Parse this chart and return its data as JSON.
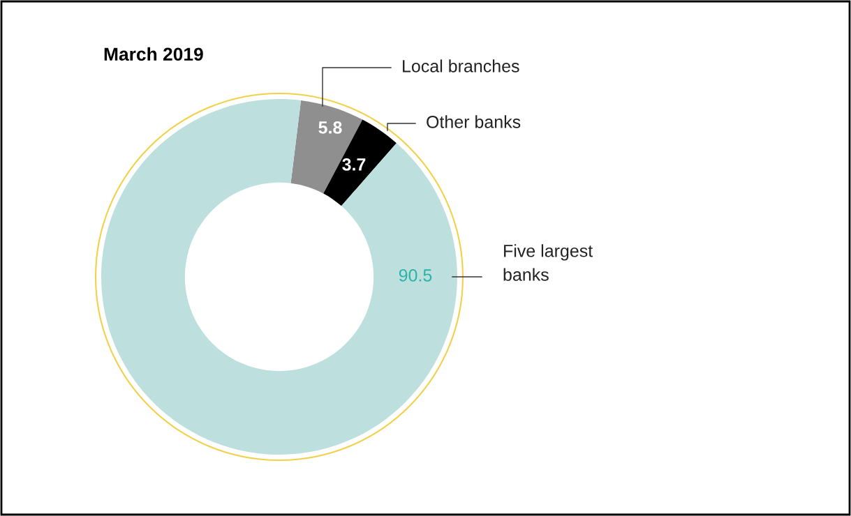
{
  "chart_data": {
    "type": "donut",
    "title": "March 2019",
    "categories": [
      "Local branches",
      "Other banks",
      "Five largest banks"
    ],
    "values": [
      5.8,
      3.7,
      90.5
    ],
    "colors": [
      "#8f8f8f",
      "#000000",
      "#bde0df"
    ],
    "data_labels": true
  }
}
